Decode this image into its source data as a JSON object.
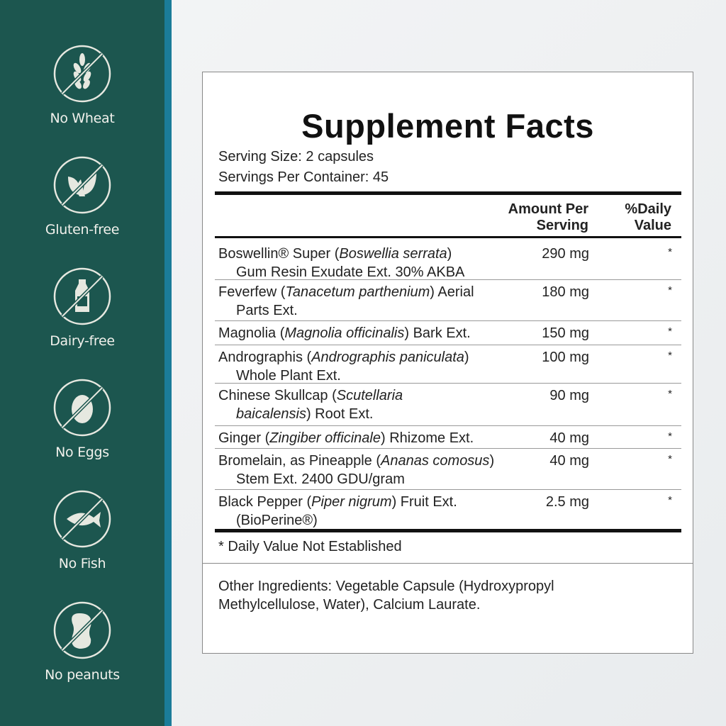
{
  "colors": {
    "sidebar": "#1c564f",
    "stripe": "#1b7c99",
    "icon": "#e6e8e0"
  },
  "badges": [
    {
      "label": "No Wheat",
      "icon": "wheat-icon"
    },
    {
      "label": "Gluten-free",
      "icon": "leaf-icon"
    },
    {
      "label": "Dairy-free",
      "icon": "milk-bottle-icon"
    },
    {
      "label": "No Eggs",
      "icon": "egg-icon"
    },
    {
      "label": "No Fish",
      "icon": "fish-icon"
    },
    {
      "label": "No peanuts",
      "icon": "peanut-icon"
    }
  ],
  "label": {
    "title": "Supplement Facts",
    "serving_size": "Serving Size: 2 capsules",
    "servings_per_container": "Servings Per Container: 45",
    "header_amount": [
      "Amount Per",
      "Serving"
    ],
    "header_dv": [
      "%Daily",
      "Value"
    ],
    "rows": [
      {
        "lines": [
          [
            {
              "t": "Boswellin® Super ("
            },
            {
              "t": "Boswellia serrata",
              "i": true
            },
            {
              "t": ")"
            }
          ],
          [
            {
              "t": "Gum Resin Exudate Ext. 30% AKBA"
            }
          ]
        ],
        "amount": "290 mg",
        "dv": "*"
      },
      {
        "lines": [
          [
            {
              "t": "Feverfew ("
            },
            {
              "t": "Tanacetum parthenium",
              "i": true
            },
            {
              "t": ") Aerial"
            }
          ],
          [
            {
              "t": "Parts Ext."
            }
          ]
        ],
        "amount": "180 mg",
        "dv": "*"
      },
      {
        "lines": [
          [
            {
              "t": "Magnolia ("
            },
            {
              "t": "Magnolia officinalis",
              "i": true
            },
            {
              "t": ") Bark Ext."
            }
          ]
        ],
        "amount": "150 mg",
        "dv": "*"
      },
      {
        "lines": [
          [
            {
              "t": "Andrographis ("
            },
            {
              "t": "Andrographis paniculata",
              "i": true
            },
            {
              "t": ")"
            }
          ],
          [
            {
              "t": "Whole Plant Ext."
            }
          ]
        ],
        "amount": "100 mg",
        "dv": "*"
      },
      {
        "lines": [
          [
            {
              "t": "Chinese Skullcap ("
            },
            {
              "t": "Scutellaria",
              "i": true
            }
          ],
          [
            {
              "t": "baicalensis",
              "i": true
            },
            {
              "t": ") Root Ext."
            }
          ]
        ],
        "amount": "90 mg",
        "dv": "*"
      },
      {
        "lines": [
          [
            {
              "t": "Ginger ("
            },
            {
              "t": "Zingiber officinale",
              "i": true
            },
            {
              "t": ") Rhizome Ext."
            }
          ]
        ],
        "amount": "40 mg",
        "dv": "*"
      },
      {
        "lines": [
          [
            {
              "t": "Bromelain, as Pineapple ("
            },
            {
              "t": "Ananas comosus",
              "i": true
            },
            {
              "t": ")"
            }
          ],
          [
            {
              "t": "Stem Ext. 2400 GDU/gram"
            }
          ]
        ],
        "amount": "40 mg",
        "dv": "*"
      },
      {
        "lines": [
          [
            {
              "t": "Black Pepper ("
            },
            {
              "t": "Piper nigrum",
              "i": true
            },
            {
              "t": ") Fruit Ext."
            }
          ],
          [
            {
              "t": "(BioPerine®)"
            }
          ]
        ],
        "amount": "2.5 mg",
        "dv": "*"
      }
    ],
    "footnote": "* Daily Value Not Established",
    "other_ingredients": [
      "Other Ingredients: Vegetable Capsule (Hydroxypropyl",
      "Methylcellulose, Water), Calcium Laurate."
    ]
  }
}
